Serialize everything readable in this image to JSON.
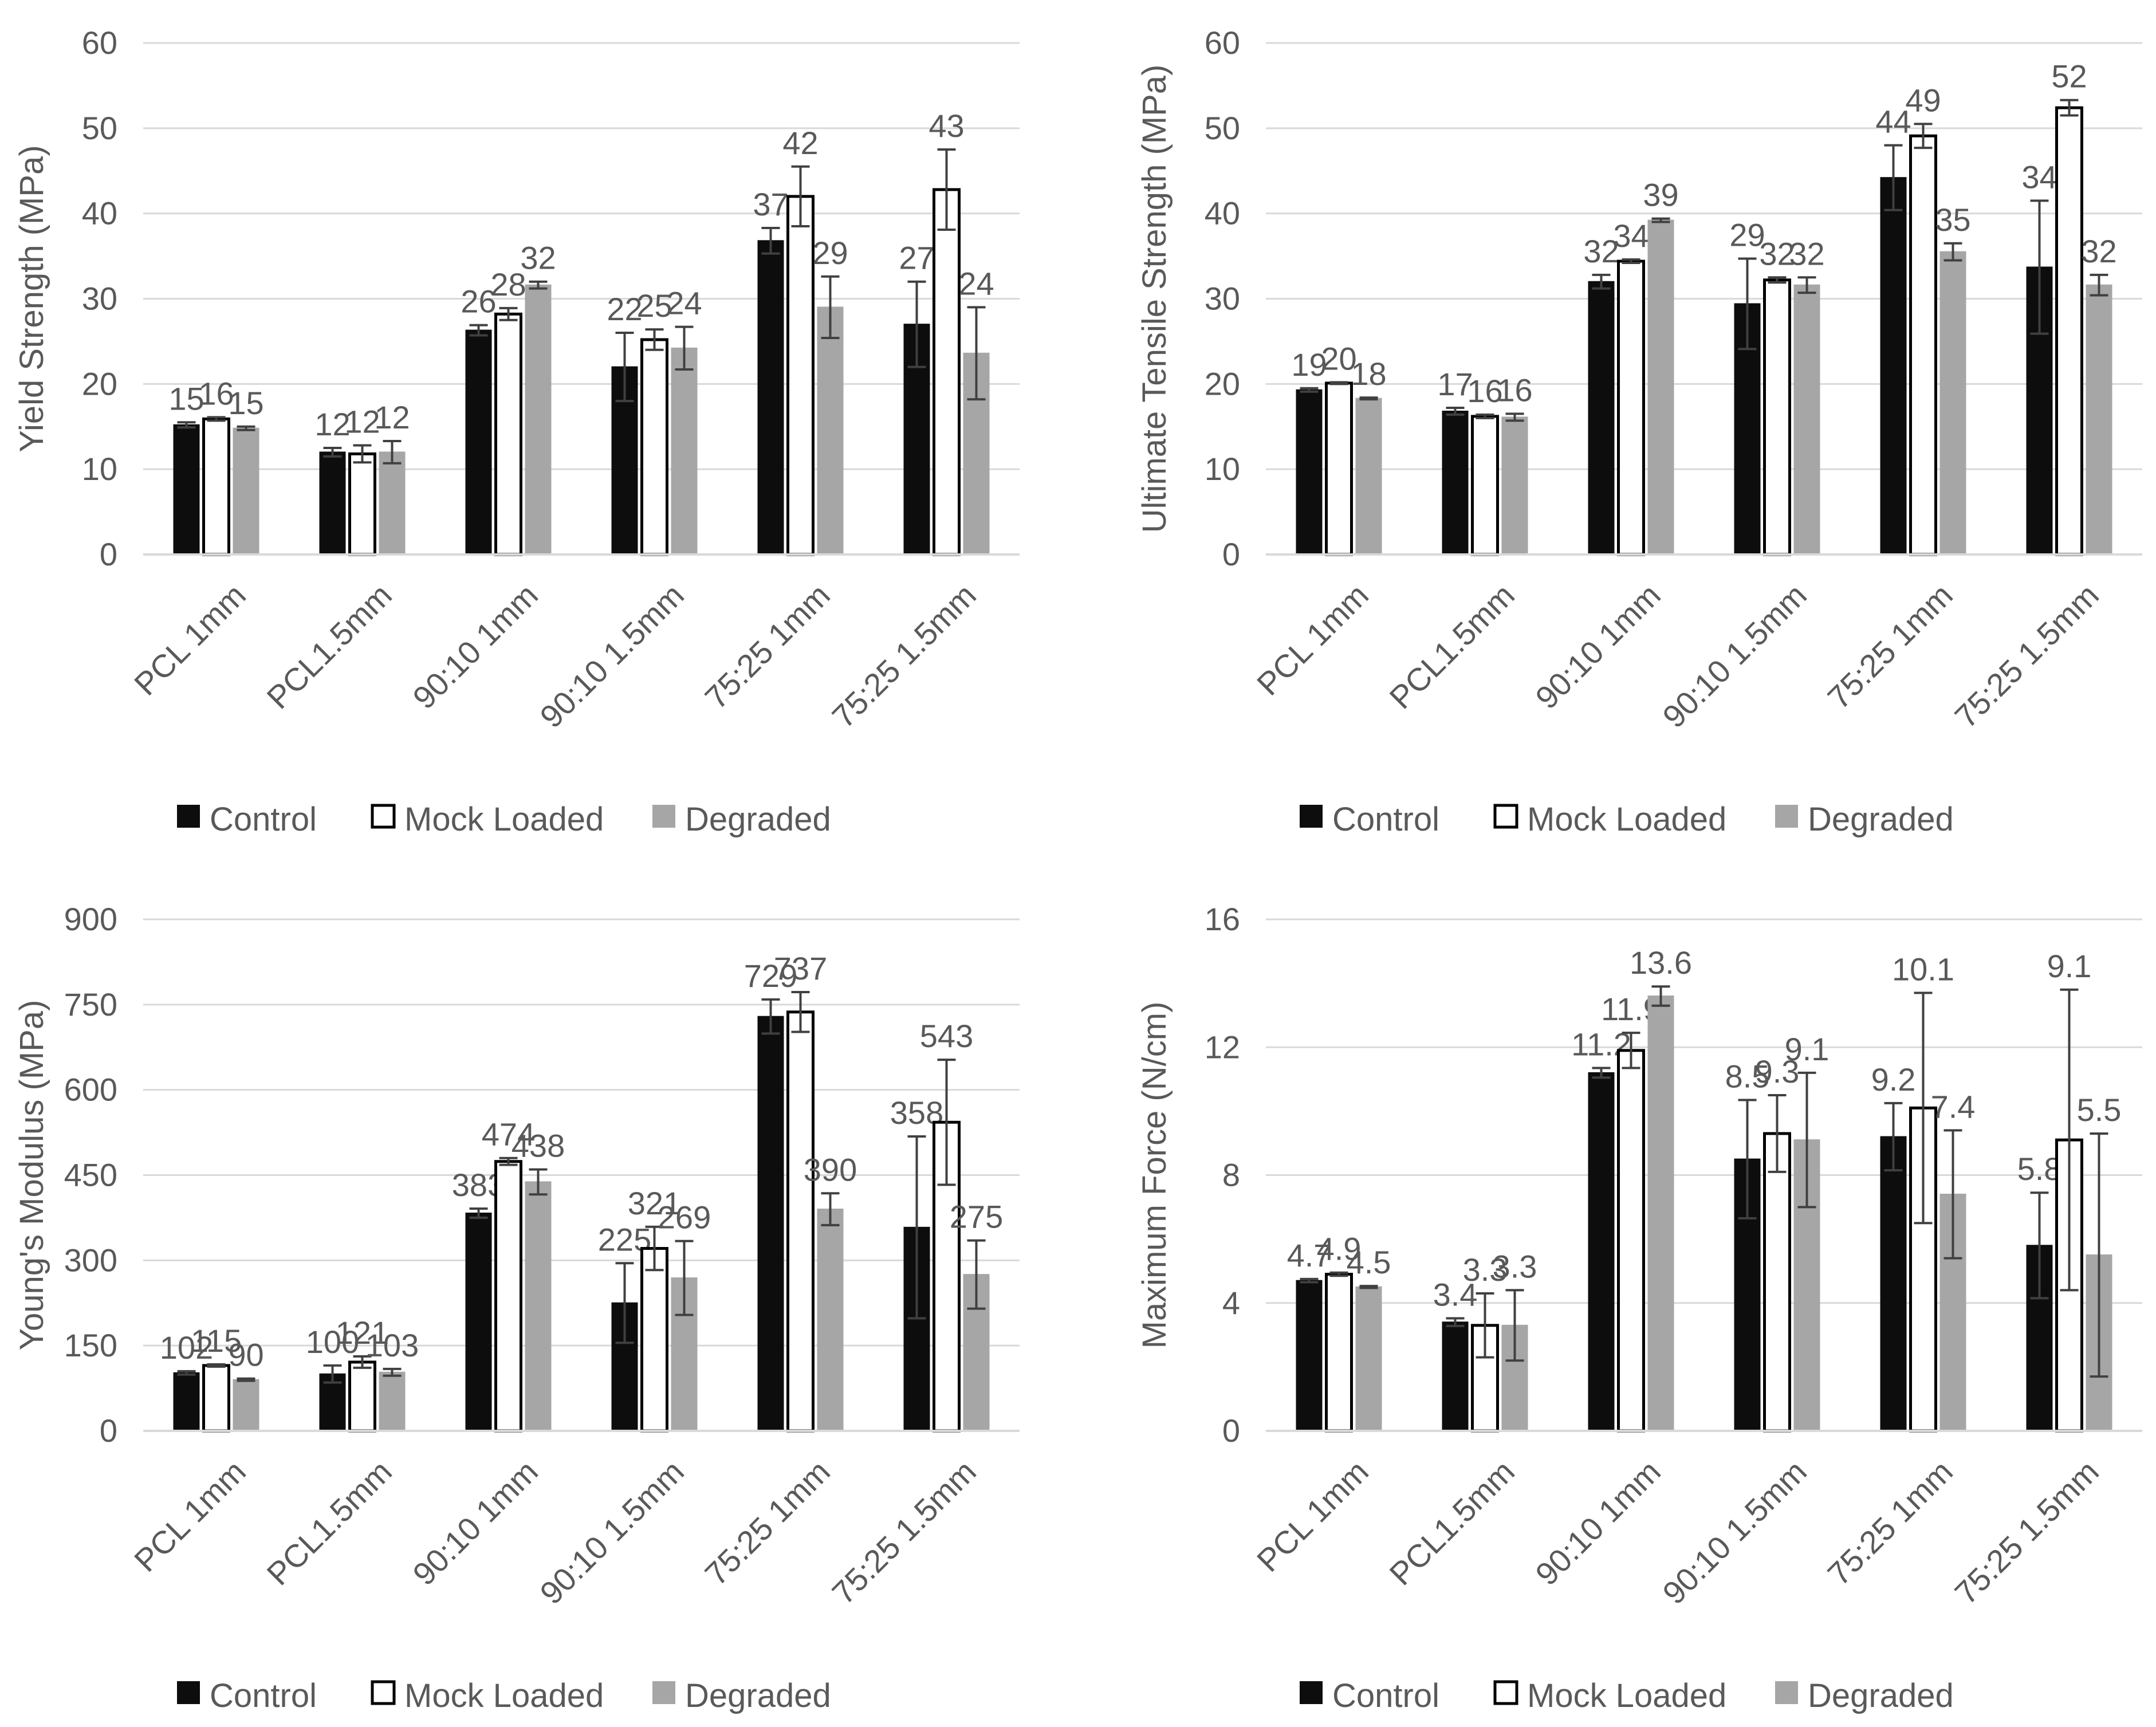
{
  "colors": {
    "control": "#0d0d0d",
    "mock": "#ffffff",
    "degraded": "#a6a6a6",
    "grid": "#d9d9d9",
    "text": "#595959"
  },
  "legend": {
    "control": "Control",
    "mock": "Mock Loaded",
    "degraded": "Degraded"
  },
  "chart_data": [
    {
      "type": "bar",
      "ylabel": "Yield Strength (MPa)",
      "ylim": [
        0,
        60
      ],
      "yticks": [
        0,
        10,
        20,
        30,
        40,
        50,
        60
      ],
      "ytick_labels": [
        "0",
        "10",
        "20",
        "30",
        "40",
        "50",
        "60"
      ],
      "categories": [
        "PCL 1mm",
        "PCL1.5mm",
        "90:10 1mm",
        "90:10 1.5mm",
        "75:25 1mm",
        "75:25 1.5mm"
      ],
      "series": [
        {
          "name": "Control",
          "values": [
            15.2,
            12.0,
            26.3,
            22.0,
            36.8,
            27.0
          ],
          "errors": [
            0.3,
            0.5,
            0.6,
            4.0,
            1.5,
            5.0
          ],
          "labels": [
            "15",
            "12",
            "26",
            "22",
            "37",
            "27"
          ]
        },
        {
          "name": "Mock Loaded",
          "values": [
            15.9,
            11.8,
            28.2,
            25.2,
            42.0,
            42.8
          ],
          "errors": [
            0.2,
            1.0,
            0.7,
            1.2,
            3.5,
            4.7
          ],
          "labels": [
            "16",
            "12",
            "28",
            "25",
            "42",
            "43"
          ]
        },
        {
          "name": "Degraded",
          "values": [
            14.8,
            12.0,
            31.6,
            24.2,
            29.0,
            23.6
          ],
          "errors": [
            0.2,
            1.3,
            0.4,
            2.5,
            3.6,
            5.4
          ],
          "labels": [
            "15",
            "12",
            "32",
            "24",
            "29",
            "24"
          ]
        }
      ]
    },
    {
      "type": "bar",
      "ylabel": "Ultimate Tensile Strength (MPa)",
      "ylim": [
        0,
        60
      ],
      "yticks": [
        0,
        10,
        20,
        30,
        40,
        50,
        60
      ],
      "ytick_labels": [
        "0",
        "10",
        "20",
        "30",
        "40",
        "50",
        "60"
      ],
      "categories": [
        "PCL 1mm",
        "PCL1.5mm",
        "90:10 1mm",
        "90:10 1.5mm",
        "75:25 1mm",
        "75:25 1.5mm"
      ],
      "series": [
        {
          "name": "Control",
          "values": [
            19.3,
            16.8,
            32.0,
            29.4,
            44.2,
            33.7
          ],
          "errors": [
            0.2,
            0.4,
            0.8,
            5.3,
            3.8,
            7.8
          ],
          "labels": [
            "19",
            "17",
            "32",
            "29",
            "44",
            "34"
          ]
        },
        {
          "name": "Mock Loaded",
          "values": [
            20.1,
            16.2,
            34.4,
            32.2,
            49.1,
            52.4
          ],
          "errors": [
            0.1,
            0.2,
            0.2,
            0.3,
            1.4,
            0.9
          ],
          "labels": [
            "20",
            "16",
            "34",
            "32",
            "49",
            "52"
          ]
        },
        {
          "name": "Degraded",
          "values": [
            18.3,
            16.1,
            39.2,
            31.6,
            35.5,
            31.6
          ],
          "errors": [
            0.1,
            0.4,
            0.2,
            0.9,
            1.0,
            1.2
          ],
          "labels": [
            "18",
            "16",
            "39",
            "32",
            "35",
            "32"
          ]
        }
      ]
    },
    {
      "type": "bar",
      "ylabel": "Young's Modulus (MPa)",
      "ylim": [
        0,
        900
      ],
      "yticks": [
        0,
        150,
        300,
        450,
        600,
        750,
        900
      ],
      "ytick_labels": [
        "0",
        "150",
        "300",
        "450",
        "600",
        "750",
        "900"
      ],
      "categories": [
        "PCL 1mm",
        "PCL1.5mm",
        "90:10 1mm",
        "90:10 1.5mm",
        "75:25 1mm",
        "75:25 1.5mm"
      ],
      "series": [
        {
          "name": "Control",
          "values": [
            102,
            100,
            383,
            225,
            729,
            358
          ],
          "errors": [
            3,
            15,
            8,
            70,
            30,
            160
          ],
          "labels": [
            "102",
            "100",
            "383",
            "225",
            "729",
            "358"
          ]
        },
        {
          "name": "Mock Loaded",
          "values": [
            115,
            121,
            474,
            321,
            737,
            543
          ],
          "errors": [
            2,
            10,
            6,
            38,
            35,
            110
          ],
          "labels": [
            "115",
            "121",
            "474",
            "321",
            "737",
            "543"
          ]
        },
        {
          "name": "Degraded",
          "values": [
            90,
            103,
            438,
            269,
            390,
            275
          ],
          "errors": [
            2,
            6,
            22,
            65,
            28,
            60
          ],
          "labels": [
            "90",
            "103",
            "438",
            "269",
            "390",
            "275"
          ]
        }
      ]
    },
    {
      "type": "bar",
      "ylabel": "Maximum Force (N/cm)",
      "ylim": [
        0,
        16
      ],
      "yticks": [
        0,
        4,
        8,
        12,
        16
      ],
      "ytick_labels": [
        "0",
        "4",
        "8",
        "12",
        "16"
      ],
      "categories": [
        "PCL 1mm",
        "PCL1.5mm",
        "90:10 1mm",
        "90:10 1.5mm",
        "75:25 1mm",
        "75:25 1.5mm"
      ],
      "series": [
        {
          "name": "Control",
          "values": [
            4.7,
            3.4,
            11.2,
            8.5,
            9.2,
            5.8
          ],
          "errors": [
            0.05,
            0.12,
            0.15,
            1.85,
            1.05,
            1.65
          ],
          "labels": [
            "4.7",
            "3.4",
            "11.2",
            "8.5",
            "9.2",
            "5.8"
          ]
        },
        {
          "name": "Mock Loaded",
          "values": [
            4.9,
            3.3,
            11.9,
            9.3,
            10.1,
            9.1
          ],
          "errors": [
            0.05,
            1.0,
            0.55,
            1.2,
            3.6,
            4.7
          ],
          "labels": [
            "4.9",
            "3.3",
            "11.9",
            "9.3",
            "10.1",
            "9.1"
          ]
        },
        {
          "name": "Degraded",
          "values": [
            4.5,
            3.3,
            13.6,
            9.1,
            7.4,
            5.5
          ],
          "errors": [
            0.03,
            1.1,
            0.3,
            2.1,
            2.0,
            3.8
          ],
          "labels": [
            "4.5",
            "3.3",
            "13.6",
            "9.1",
            "7.4",
            "5.5"
          ]
        }
      ]
    }
  ]
}
